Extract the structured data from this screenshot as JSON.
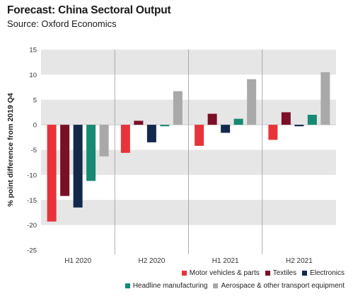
{
  "header": {
    "title": "Forecast: China Sectoral Output",
    "subtitle": "Source: Oxford Economics"
  },
  "chart_data": {
    "type": "bar",
    "title": "Forecast: China Sectoral Output",
    "subtitle": "Source: Oxford Economics",
    "xlabel": "",
    "ylabel": "% point difference from 2019 Q4",
    "ylim": [
      -25,
      15
    ],
    "yticks": [
      15,
      10,
      5,
      0,
      -5,
      -10,
      -15,
      -20,
      -25
    ],
    "categories": [
      "H1 2020",
      "H2 2020",
      "H1 2021",
      "H2 2021"
    ],
    "grid": "horizontal bands",
    "legend_position": "bottom-right",
    "series": [
      {
        "name": "Motor vehicles & parts",
        "color": "#e8333a",
        "values": [
          -19.3,
          -5.6,
          -4.2,
          -3.0
        ]
      },
      {
        "name": "Textiles",
        "color": "#7a0f26",
        "values": [
          -14.2,
          0.8,
          2.2,
          2.5
        ]
      },
      {
        "name": "Electronics",
        "color": "#13294b",
        "values": [
          -16.5,
          -3.5,
          -1.6,
          -0.3
        ]
      },
      {
        "name": "Headline manufacturing",
        "color": "#178a73",
        "values": [
          -11.2,
          -0.3,
          1.2,
          2.0
        ]
      },
      {
        "name": "Aerospace & other transport equipment",
        "color": "#a9a9a9",
        "values": [
          -6.3,
          6.7,
          9.1,
          10.5
        ]
      }
    ]
  }
}
